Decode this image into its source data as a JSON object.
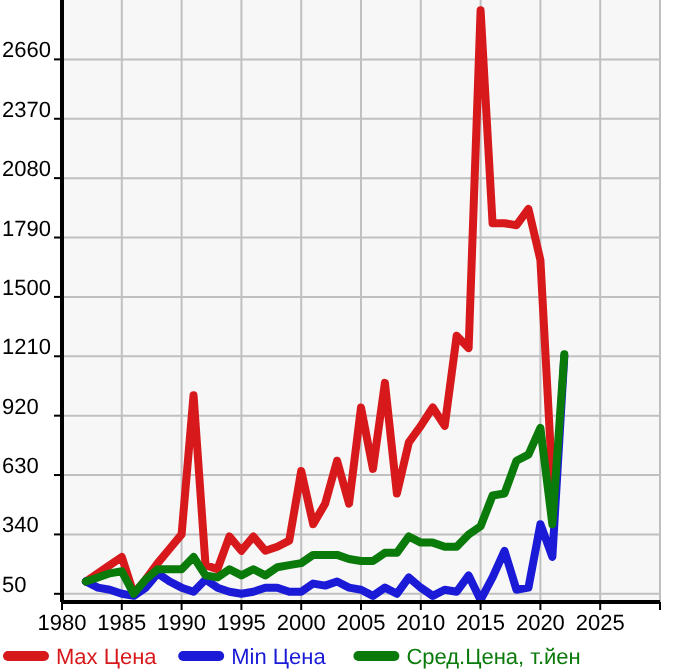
{
  "chart_data": {
    "type": "line",
    "x": [
      1982,
      1983,
      1984,
      1985,
      1986,
      1987,
      1988,
      1989,
      1990,
      1991,
      1992,
      1993,
      1994,
      1995,
      1996,
      1997,
      1998,
      1999,
      2000,
      2001,
      2002,
      2003,
      2004,
      2005,
      2006,
      2007,
      2008,
      2009,
      2010,
      2011,
      2012,
      2013,
      2014,
      2015,
      2016,
      2017,
      2018,
      2019,
      2020,
      2021,
      2022
    ],
    "series": [
      {
        "name": "Max Цена",
        "color": "#d7191c",
        "values": [
          110,
          150,
          190,
          230,
          50,
          120,
          200,
          270,
          340,
          1020,
          190,
          170,
          330,
          260,
          330,
          260,
          280,
          310,
          650,
          390,
          490,
          700,
          490,
          960,
          660,
          1080,
          540,
          790,
          870,
          960,
          870,
          1310,
          1250,
          2900,
          1860,
          1860,
          1850,
          1930,
          1680,
          600,
          null
        ]
      },
      {
        "name": "Min Цена",
        "color": "#1a1ad7",
        "values": [
          110,
          80,
          70,
          50,
          40,
          80,
          150,
          110,
          80,
          60,
          120,
          80,
          60,
          50,
          60,
          80,
          80,
          60,
          60,
          100,
          90,
          110,
          80,
          70,
          40,
          80,
          50,
          130,
          80,
          40,
          70,
          60,
          140,
          20,
          130,
          260,
          70,
          80,
          390,
          230,
          1210
        ]
      },
      {
        "name": "Сред.Цена, т.йен",
        "color": "#0a7a0a",
        "values": [
          110,
          130,
          150,
          160,
          50,
          120,
          170,
          170,
          170,
          230,
          140,
          130,
          170,
          140,
          170,
          140,
          180,
          190,
          200,
          240,
          240,
          240,
          220,
          210,
          210,
          250,
          250,
          330,
          300,
          300,
          280,
          280,
          340,
          380,
          530,
          540,
          700,
          730,
          860,
          390,
          1220
        ]
      }
    ],
    "xlim": [
      1980,
      2030
    ],
    "xticks": [
      1980,
      1985,
      1990,
      1995,
      2000,
      2005,
      2010,
      2015,
      2020,
      2025
    ],
    "ylim": [
      10,
      2950
    ],
    "yticks": [
      50,
      340,
      630,
      920,
      1210,
      1500,
      1790,
      2080,
      2370,
      2660
    ],
    "grid": true,
    "legend": "bottom",
    "line_style": "solid",
    "marker": "none"
  }
}
